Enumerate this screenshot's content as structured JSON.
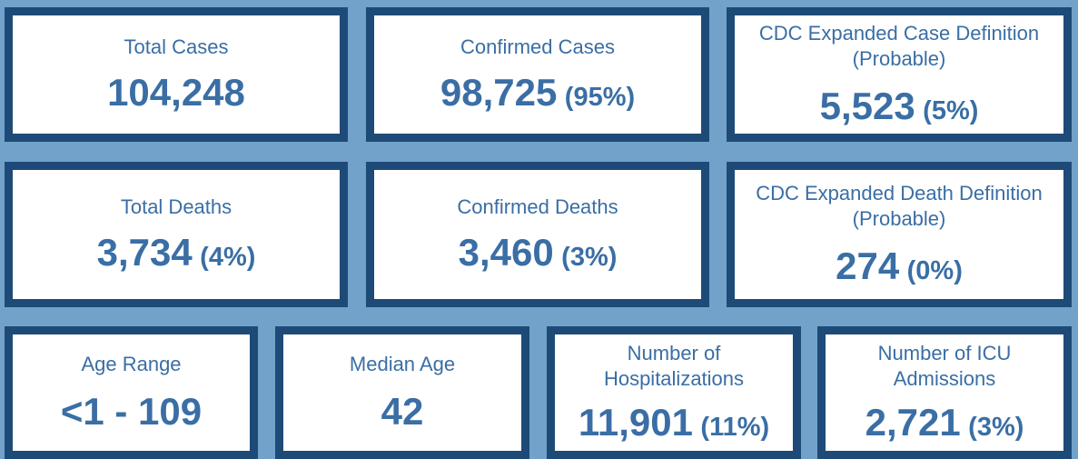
{
  "colors": {
    "background": "#72a2c9",
    "border": "#1e4a78",
    "text": "#3a6ea5",
    "card": "#ffffff"
  },
  "cards": [
    {
      "label": "Total Cases",
      "value": "104,248",
      "pct": ""
    },
    {
      "label": "Confirmed Cases",
      "value": "98,725",
      "pct": "(95%)"
    },
    {
      "label": "CDC Expanded Case Definition (Probable)",
      "value": "5,523",
      "pct": "(5%)"
    },
    {
      "label": "Total Deaths",
      "value": "3,734",
      "pct": "(4%)"
    },
    {
      "label": "Confirmed Deaths",
      "value": "3,460",
      "pct": "(3%)"
    },
    {
      "label": "CDC Expanded Death Definition (Probable)",
      "value": "274",
      "pct": "(0%)"
    },
    {
      "label": "Age Range",
      "value": "<1 - 109",
      "pct": ""
    },
    {
      "label": "Median Age",
      "value": "42",
      "pct": ""
    },
    {
      "label": "Number of Hospitalizations",
      "value": "11,901",
      "pct": "(11%)"
    },
    {
      "label": "Number of ICU Admissions",
      "value": "2,721",
      "pct": "(3%)"
    }
  ]
}
